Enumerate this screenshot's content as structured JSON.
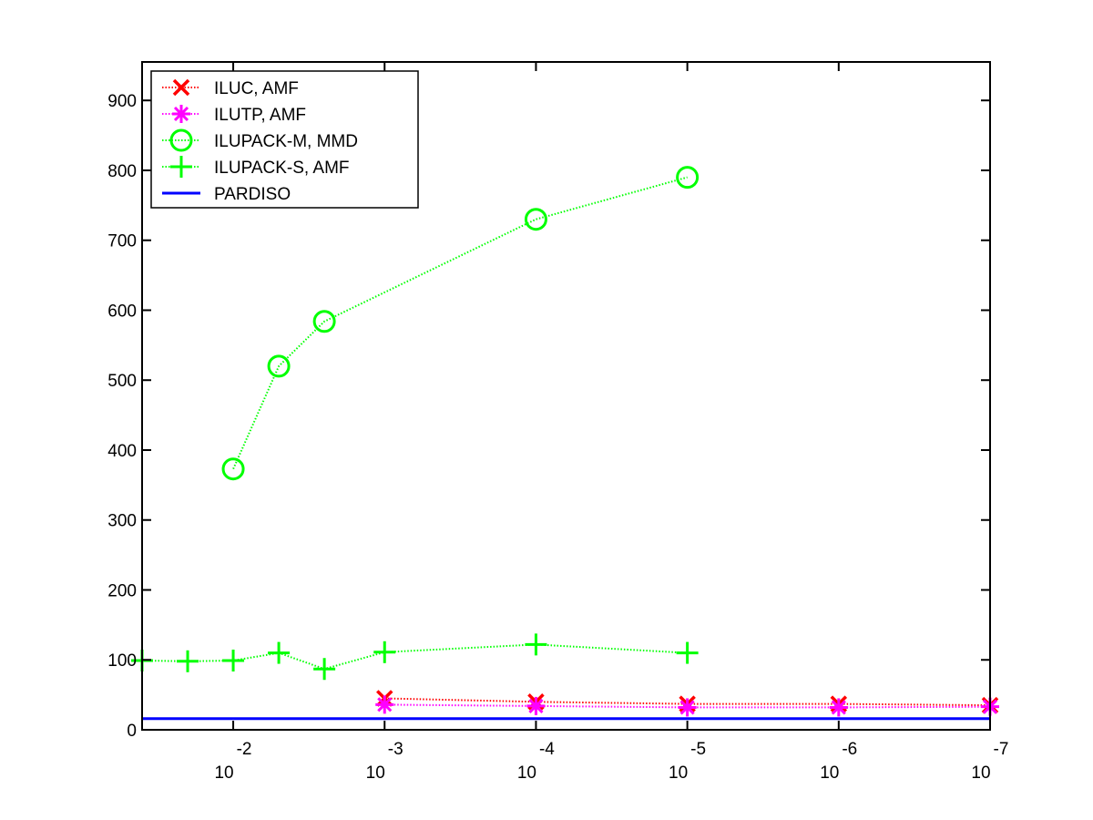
{
  "chart_data": {
    "type": "line",
    "title": "",
    "xlabel": "",
    "ylabel": "",
    "x_scale": "log",
    "x_reversed": true,
    "xlim": [
      0.04,
      1e-07
    ],
    "ylim": [
      0,
      955
    ],
    "grid": false,
    "legend_position": "top-left",
    "x_ticks": [
      {
        "value": 0.01,
        "base": "10",
        "exp": "-2"
      },
      {
        "value": 0.001,
        "base": "10",
        "exp": "-3"
      },
      {
        "value": 0.0001,
        "base": "10",
        "exp": "-4"
      },
      {
        "value": 1e-05,
        "base": "10",
        "exp": "-5"
      },
      {
        "value": 1e-06,
        "base": "10",
        "exp": "-6"
      },
      {
        "value": 1e-07,
        "base": "10",
        "exp": "-7"
      }
    ],
    "y_ticks": [
      0,
      100,
      200,
      300,
      400,
      500,
      600,
      700,
      800,
      900
    ],
    "series": [
      {
        "name": "ILUC, AMF",
        "color": "#ff0000",
        "marker": "x",
        "line_style": "dotted",
        "points": [
          [
            0.001,
            45
          ],
          [
            0.0001,
            40
          ],
          [
            1e-05,
            37
          ],
          [
            1e-06,
            37
          ],
          [
            1e-07,
            35
          ]
        ]
      },
      {
        "name": "ILUTP, AMF",
        "color": "#ff00ff",
        "marker": "asterisk",
        "line_style": "dotted",
        "points": [
          [
            0.001,
            36
          ],
          [
            0.0001,
            34
          ],
          [
            1e-05,
            32
          ],
          [
            1e-06,
            32
          ],
          [
            1e-07,
            33
          ]
        ]
      },
      {
        "name": "ILUPACK-M, MMD",
        "color": "#00ff00",
        "marker": "circle",
        "line_style": "dotted",
        "points": [
          [
            0.01,
            373
          ],
          [
            0.005,
            520
          ],
          [
            0.0025,
            584
          ],
          [
            0.0001,
            730
          ],
          [
            1e-05,
            790
          ]
        ]
      },
      {
        "name": "ILUPACK-S, AMF",
        "color": "#00ff00",
        "marker": "plus",
        "line_style": "dotted",
        "points": [
          [
            0.04,
            99
          ],
          [
            0.02,
            98
          ],
          [
            0.01,
            99
          ],
          [
            0.005,
            110
          ],
          [
            0.0025,
            87
          ],
          [
            0.001,
            111
          ],
          [
            0.0001,
            122
          ],
          [
            1e-05,
            110
          ]
        ]
      },
      {
        "name": "PARDISO",
        "color": "#0000ff",
        "marker": "none",
        "line_style": "solid",
        "points": [
          [
            0.04,
            16
          ],
          [
            1e-07,
            16
          ]
        ]
      }
    ]
  }
}
